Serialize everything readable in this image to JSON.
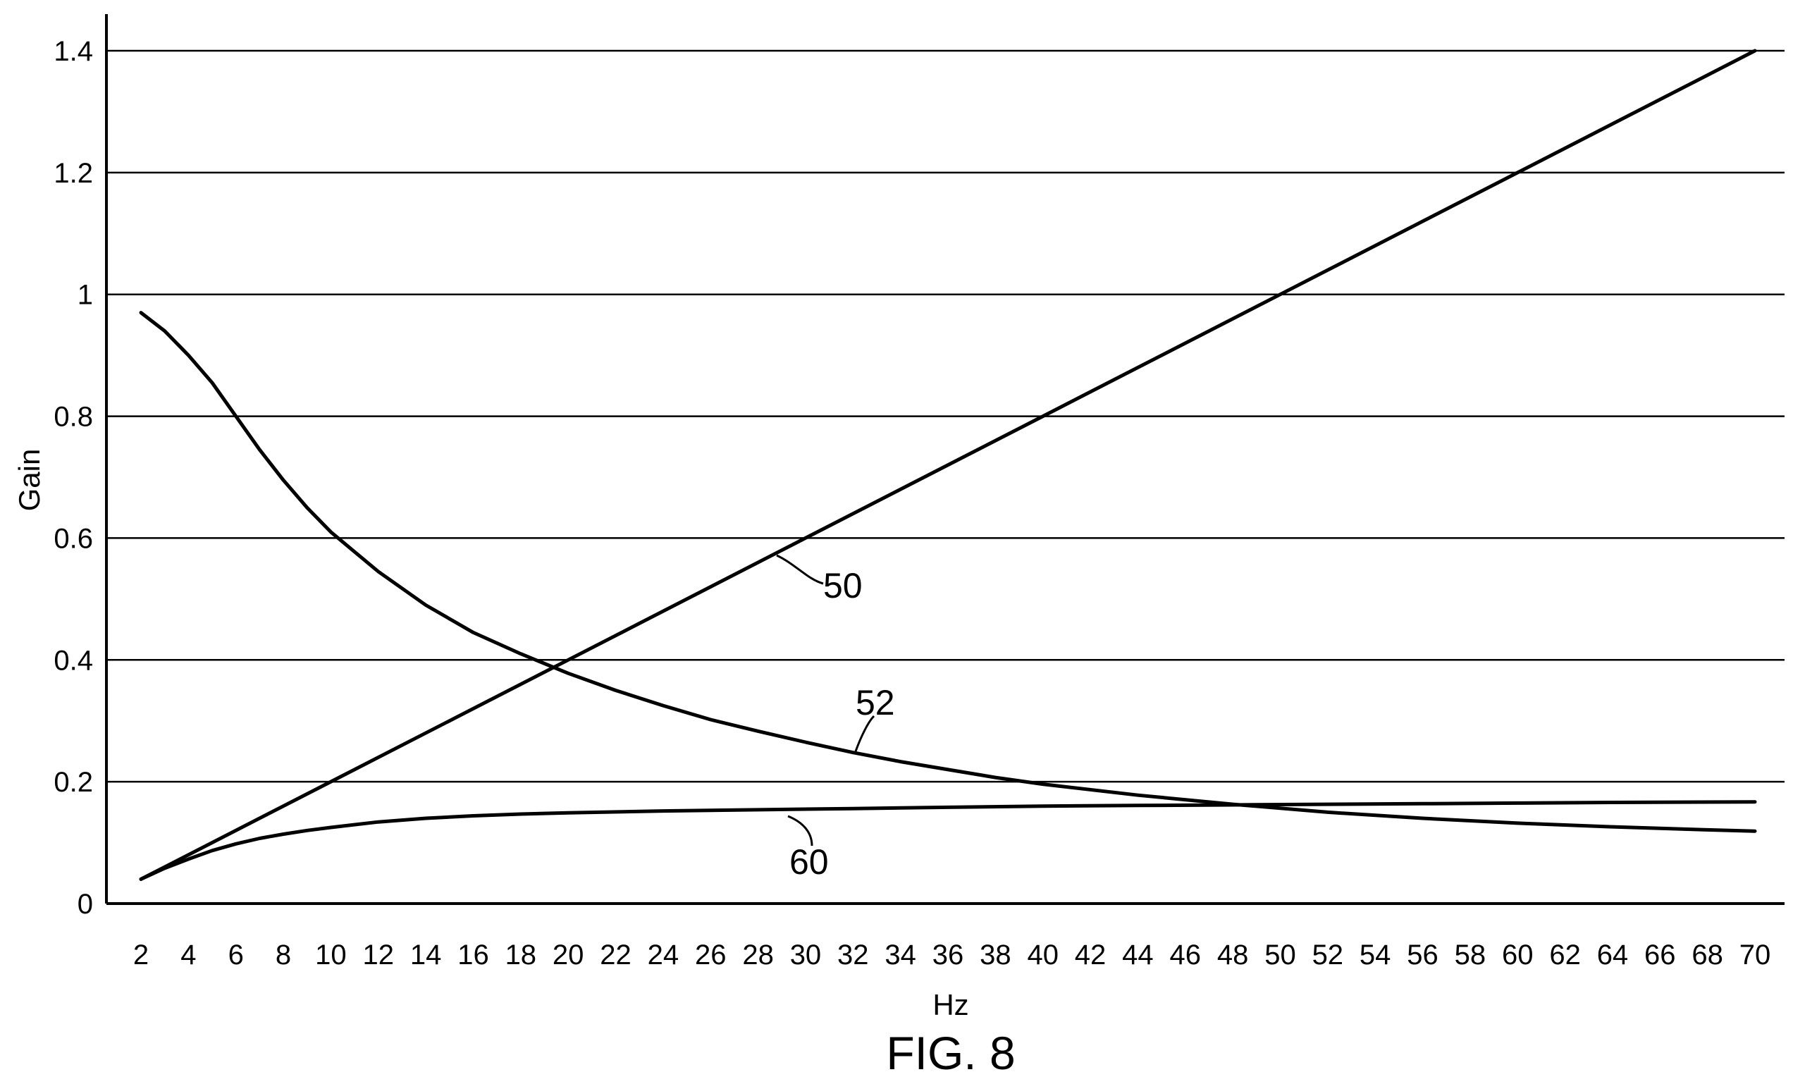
{
  "chart_data": {
    "type": "line",
    "xlabel": "Hz",
    "ylabel": "Gain",
    "caption": "FIG. 8",
    "xlim": [
      2,
      70
    ],
    "ylim": [
      0,
      1.4
    ],
    "x_ticks": [
      2,
      4,
      6,
      8,
      10,
      12,
      14,
      16,
      18,
      20,
      22,
      24,
      26,
      28,
      30,
      32,
      34,
      36,
      38,
      40,
      42,
      44,
      46,
      48,
      50,
      52,
      54,
      56,
      58,
      60,
      62,
      64,
      66,
      68,
      70
    ],
    "y_ticks": [
      0,
      0.2,
      0.4,
      0.6,
      0.8,
      1,
      1.2,
      1.4
    ],
    "y_tick_labels": [
      "0",
      "0.2",
      "0.4",
      "0.6",
      "0.8",
      "1",
      "1.2",
      "1.4"
    ],
    "grid": "horizontal",
    "series": [
      {
        "name": "50",
        "x": [
          2,
          10,
          20,
          30,
          40,
          50,
          60,
          70
        ],
        "y": [
          0.04,
          0.2,
          0.4,
          0.6,
          0.8,
          1.0,
          1.2,
          1.4
        ]
      },
      {
        "name": "52",
        "x": [
          2,
          3,
          4,
          5,
          6,
          7,
          8,
          9,
          10,
          12,
          14,
          16,
          18,
          20,
          22,
          24,
          26,
          28,
          30,
          32,
          34,
          36,
          38,
          40,
          44,
          48,
          52,
          56,
          60,
          64,
          68,
          70
        ],
        "y": [
          0.97,
          0.94,
          0.9,
          0.855,
          0.8,
          0.745,
          0.695,
          0.65,
          0.61,
          0.545,
          0.49,
          0.445,
          0.41,
          0.378,
          0.35,
          0.325,
          0.302,
          0.283,
          0.265,
          0.248,
          0.233,
          0.22,
          0.207,
          0.196,
          0.178,
          0.163,
          0.15,
          0.14,
          0.132,
          0.126,
          0.121,
          0.119
        ]
      },
      {
        "name": "60",
        "x": [
          2,
          3,
          4,
          5,
          6,
          7,
          8,
          9,
          10,
          12,
          14,
          16,
          18,
          20,
          24,
          28,
          32,
          36,
          40,
          44,
          48,
          52,
          56,
          60,
          64,
          70
        ],
        "y": [
          0.04,
          0.058,
          0.073,
          0.087,
          0.098,
          0.107,
          0.114,
          0.12,
          0.125,
          0.134,
          0.14,
          0.144,
          0.147,
          0.149,
          0.152,
          0.154,
          0.156,
          0.158,
          0.16,
          0.161,
          0.162,
          0.163,
          0.164,
          0.165,
          0.166,
          0.167
        ]
      }
    ]
  }
}
